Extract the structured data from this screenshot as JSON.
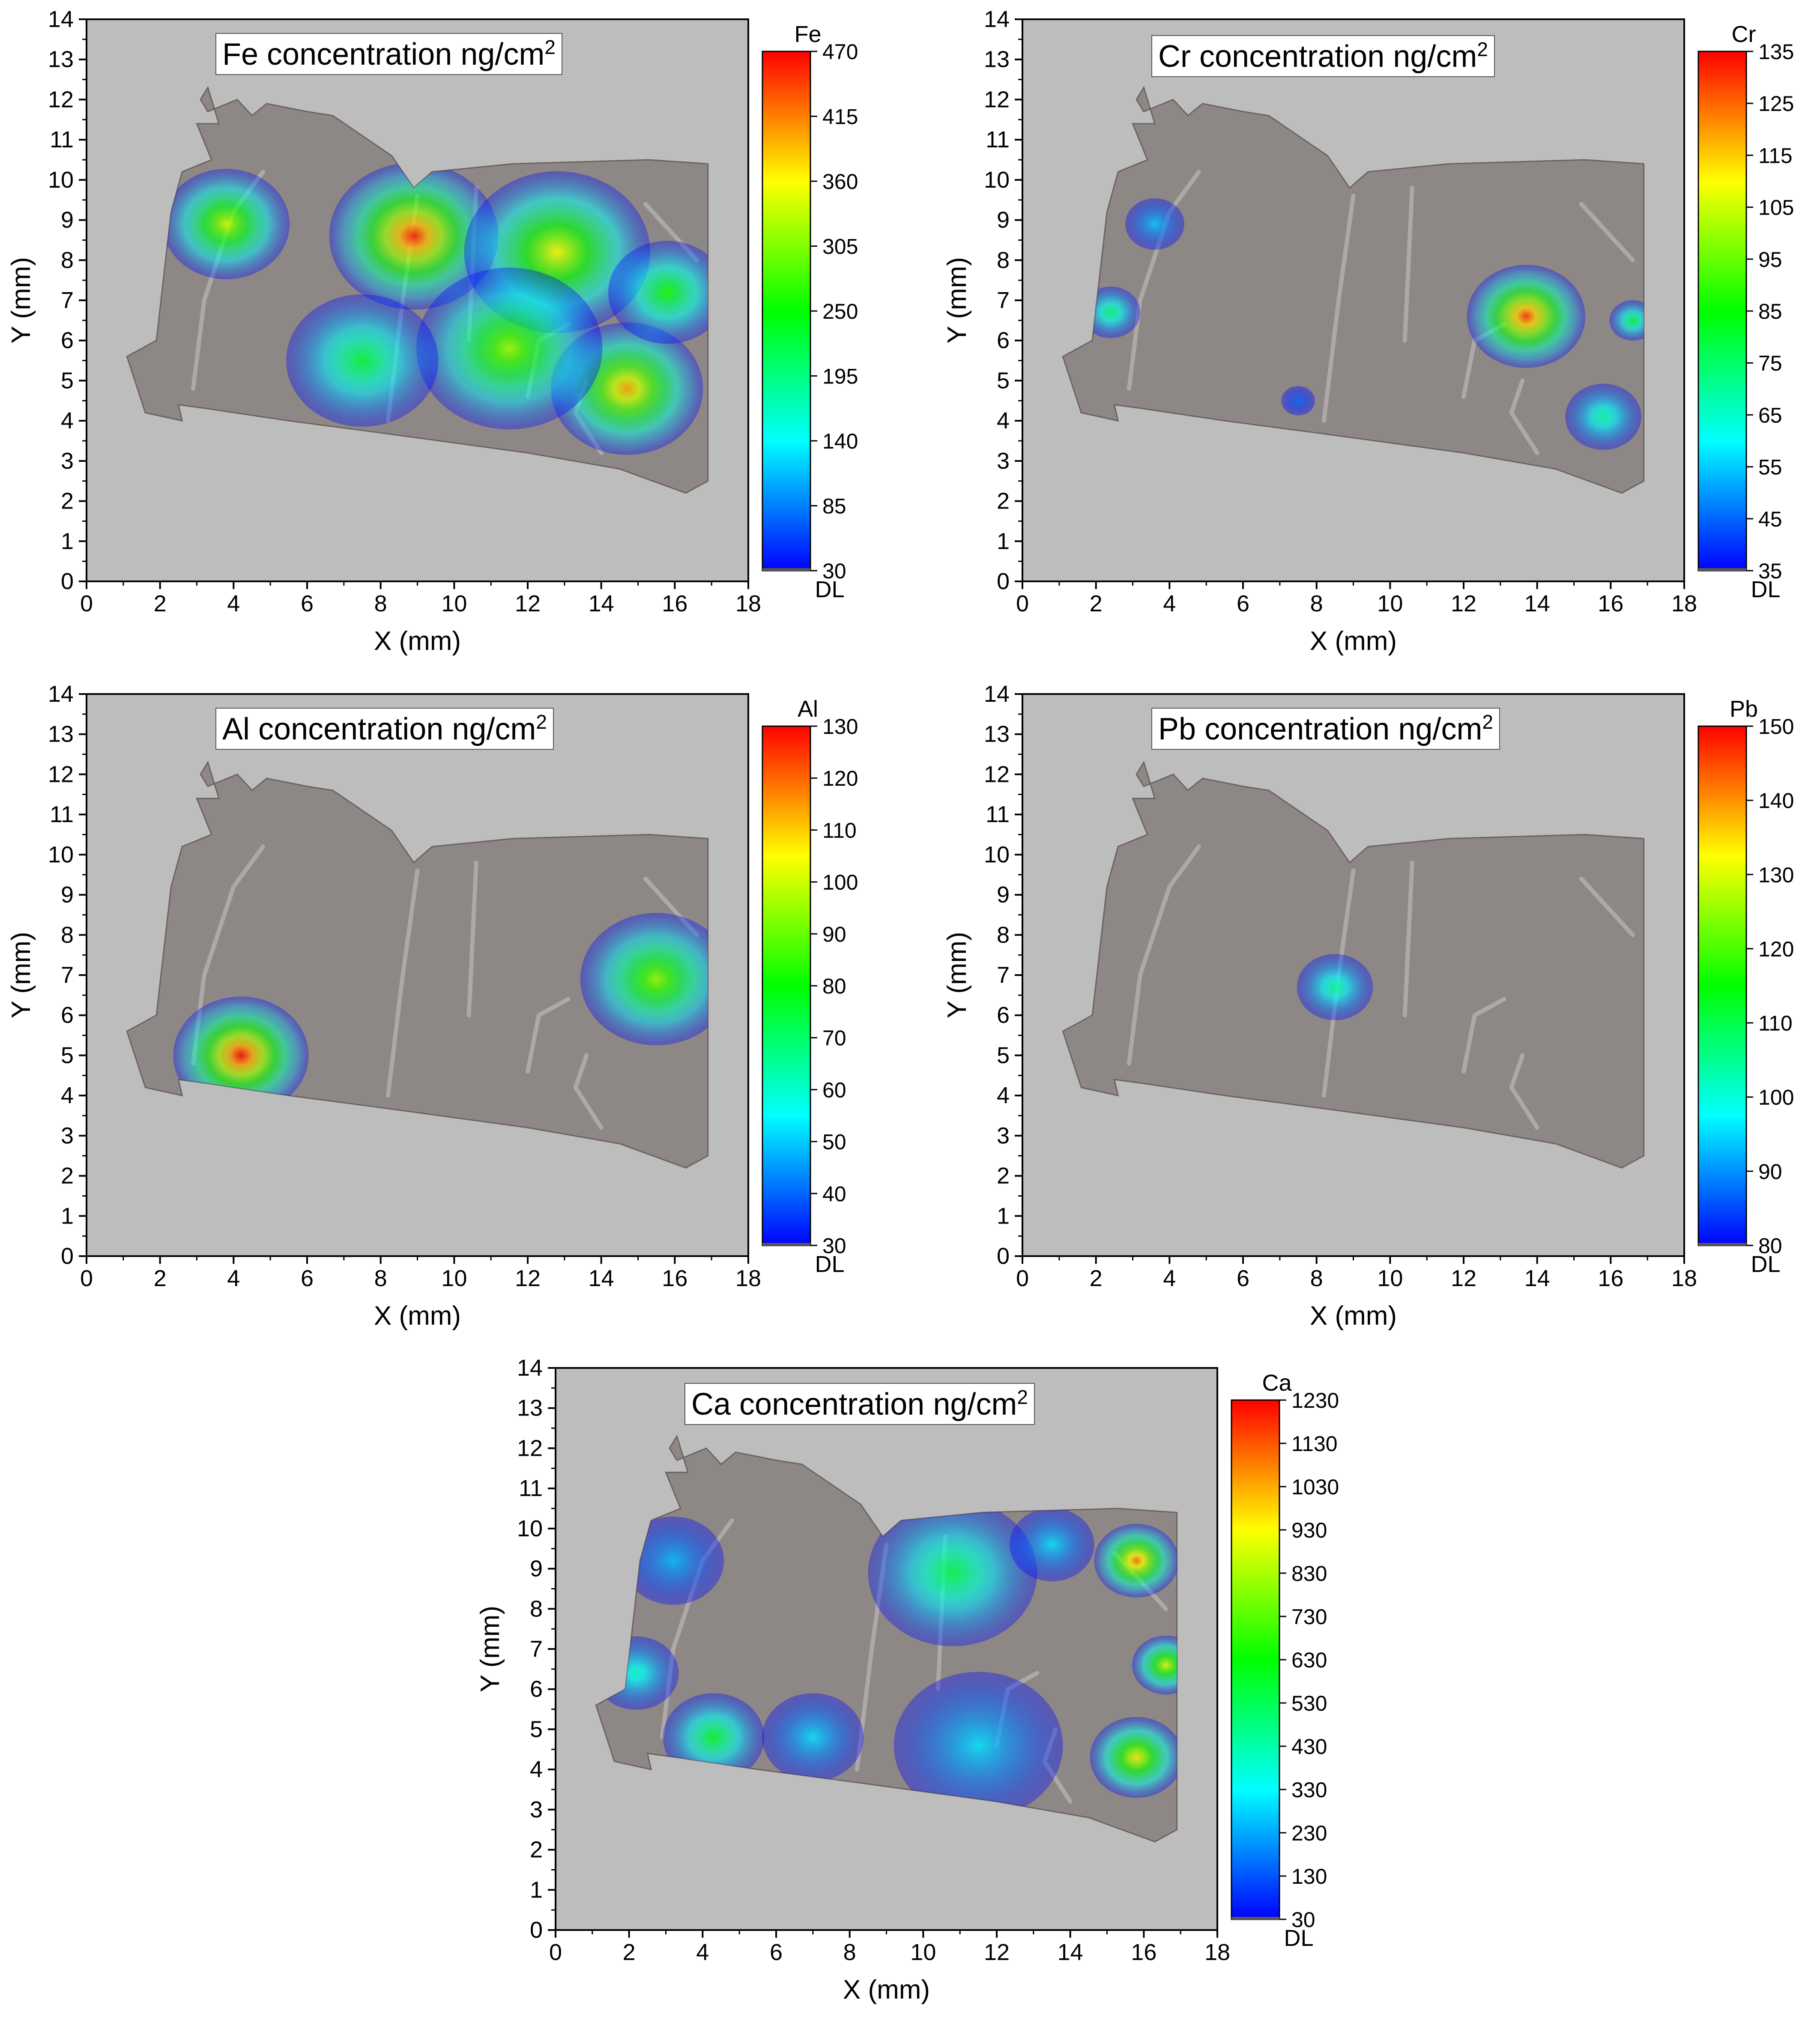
{
  "colors": {
    "plot_background": "#bdbdbd",
    "sample": "#8d8886",
    "sample_edge": "#6b6260",
    "scale_low": "#0000ff",
    "scale_mid_low": "#00ffff",
    "scale_mid": "#00ff00",
    "scale_mid_high": "#ffff00",
    "scale_high": "#ff0000"
  },
  "chart_data": [
    {
      "type": "heatmap",
      "title": "Fe concentration ng/cm",
      "title_superscript": "2",
      "xlabel": "X (mm)",
      "ylabel": "Y (mm)",
      "xlim": [
        0,
        18
      ],
      "ylim": [
        0,
        14
      ],
      "xticks": [
        "0",
        "2",
        "4",
        "6",
        "8",
        "10",
        "12",
        "14",
        "16",
        "18"
      ],
      "yticks": [
        "0",
        "1",
        "2",
        "3",
        "4",
        "5",
        "6",
        "7",
        "8",
        "9",
        "10",
        "11",
        "12",
        "13",
        "14"
      ],
      "colorbar": {
        "name": "Fe",
        "range": [
          30,
          470
        ],
        "ticks": [
          "30",
          "85",
          "140",
          "195",
          "250",
          "305",
          "360",
          "415",
          "470"
        ],
        "below_label": "DL"
      },
      "hotspots": [
        {
          "x": 3.8,
          "y": 8.9,
          "value": 340,
          "radius": 1.5
        },
        {
          "x": 8.9,
          "y": 8.6,
          "value": 460,
          "radius": 2.0
        },
        {
          "x": 12.8,
          "y": 8.2,
          "value": 360,
          "radius": 2.2
        },
        {
          "x": 14.7,
          "y": 4.8,
          "value": 400,
          "radius": 1.8
        },
        {
          "x": 11.5,
          "y": 5.8,
          "value": 320,
          "radius": 2.2
        },
        {
          "x": 7.5,
          "y": 5.5,
          "value": 230,
          "radius": 1.8
        },
        {
          "x": 15.8,
          "y": 7.2,
          "value": 260,
          "radius": 1.4
        }
      ]
    },
    {
      "type": "heatmap",
      "title": "Cr concentration ng/cm",
      "title_superscript": "2",
      "xlabel": "X (mm)",
      "ylabel": "Y (mm)",
      "xlim": [
        0,
        18
      ],
      "ylim": [
        0,
        14
      ],
      "xticks": [
        "0",
        "2",
        "4",
        "6",
        "8",
        "10",
        "12",
        "14",
        "16",
        "18"
      ],
      "yticks": [
        "0",
        "1",
        "2",
        "3",
        "4",
        "5",
        "6",
        "7",
        "8",
        "9",
        "10",
        "11",
        "12",
        "13",
        "14"
      ],
      "colorbar": {
        "name": "Cr",
        "range": [
          35,
          135
        ],
        "ticks": [
          "35",
          "45",
          "55",
          "65",
          "75",
          "85",
          "95",
          "105",
          "115",
          "125",
          "135"
        ],
        "below_label": "DL"
      },
      "hotspots": [
        {
          "x": 3.6,
          "y": 8.9,
          "value": 55,
          "radius": 0.7
        },
        {
          "x": 2.4,
          "y": 6.7,
          "value": 75,
          "radius": 0.7
        },
        {
          "x": 13.7,
          "y": 6.6,
          "value": 130,
          "radius": 1.4
        },
        {
          "x": 16.6,
          "y": 6.5,
          "value": 80,
          "radius": 0.55
        },
        {
          "x": 15.8,
          "y": 4.1,
          "value": 70,
          "radius": 0.9
        },
        {
          "x": 7.5,
          "y": 4.5,
          "value": 45,
          "radius": 0.4
        }
      ]
    },
    {
      "type": "heatmap",
      "title": "Al concentration ng/cm",
      "title_superscript": "2",
      "xlabel": "X (mm)",
      "ylabel": "Y (mm)",
      "xlim": [
        0,
        18
      ],
      "ylim": [
        0,
        14
      ],
      "xticks": [
        "0",
        "2",
        "4",
        "6",
        "8",
        "10",
        "12",
        "14",
        "16",
        "18"
      ],
      "yticks": [
        "0",
        "1",
        "2",
        "3",
        "4",
        "5",
        "6",
        "7",
        "8",
        "9",
        "10",
        "11",
        "12",
        "13",
        "14"
      ],
      "colorbar": {
        "name": "Al",
        "range": [
          30,
          130
        ],
        "ticks": [
          "30",
          "40",
          "50",
          "60",
          "70",
          "80",
          "90",
          "100",
          "110",
          "120",
          "130"
        ],
        "below_label": "DL"
      },
      "hotspots": [
        {
          "x": 4.2,
          "y": 5.0,
          "value": 130,
          "radius": 1.6
        },
        {
          "x": 15.5,
          "y": 6.9,
          "value": 95,
          "radius": 1.8
        }
      ]
    },
    {
      "type": "heatmap",
      "title": "Pb concentration ng/cm",
      "title_superscript": "2",
      "xlabel": "X (mm)",
      "ylabel": "Y (mm)",
      "xlim": [
        0,
        18
      ],
      "ylim": [
        0,
        14
      ],
      "xticks": [
        "0",
        "2",
        "4",
        "6",
        "8",
        "10",
        "12",
        "14",
        "16",
        "18"
      ],
      "yticks": [
        "0",
        "1",
        "2",
        "3",
        "4",
        "5",
        "6",
        "7",
        "8",
        "9",
        "10",
        "11",
        "12",
        "13",
        "14"
      ],
      "colorbar": {
        "name": "Pb",
        "range": [
          80,
          150
        ],
        "ticks": [
          "80",
          "90",
          "100",
          "110",
          "120",
          "130",
          "140",
          "150"
        ],
        "below_label": "DL"
      },
      "hotspots": [
        {
          "x": 8.5,
          "y": 6.7,
          "value": 105,
          "radius": 0.9
        }
      ]
    },
    {
      "type": "heatmap",
      "title": "Ca concentration ng/cm",
      "title_superscript": "2",
      "xlabel": "X (mm)",
      "ylabel": "Y (mm)",
      "xlim": [
        0,
        18
      ],
      "ylim": [
        0,
        14
      ],
      "xticks": [
        "0",
        "2",
        "4",
        "6",
        "8",
        "10",
        "12",
        "14",
        "16",
        "18"
      ],
      "yticks": [
        "0",
        "1",
        "2",
        "3",
        "4",
        "5",
        "6",
        "7",
        "8",
        "9",
        "10",
        "11",
        "12",
        "13",
        "14"
      ],
      "colorbar": {
        "name": "Ca",
        "range": [
          30,
          1230
        ],
        "ticks": [
          "30",
          "130",
          "230",
          "330",
          "430",
          "530",
          "630",
          "730",
          "830",
          "930",
          "1030",
          "1130",
          "1230"
        ],
        "below_label": "DL"
      },
      "hotspots": [
        {
          "x": 15.8,
          "y": 9.2,
          "value": 1100,
          "radius": 1.0
        },
        {
          "x": 16.6,
          "y": 6.6,
          "value": 900,
          "radius": 0.8
        },
        {
          "x": 15.8,
          "y": 4.3,
          "value": 950,
          "radius": 1.1
        },
        {
          "x": 10.8,
          "y": 8.9,
          "value": 550,
          "radius": 2.0
        },
        {
          "x": 4.3,
          "y": 4.8,
          "value": 600,
          "radius": 1.2
        },
        {
          "x": 2.2,
          "y": 6.4,
          "value": 400,
          "radius": 1.0
        },
        {
          "x": 11.5,
          "y": 4.6,
          "value": 300,
          "radius": 2.0
        },
        {
          "x": 7.0,
          "y": 4.8,
          "value": 300,
          "radius": 1.2
        },
        {
          "x": 3.2,
          "y": 9.2,
          "value": 250,
          "radius": 1.2
        },
        {
          "x": 13.5,
          "y": 9.6,
          "value": 300,
          "radius": 1.0
        }
      ]
    }
  ]
}
